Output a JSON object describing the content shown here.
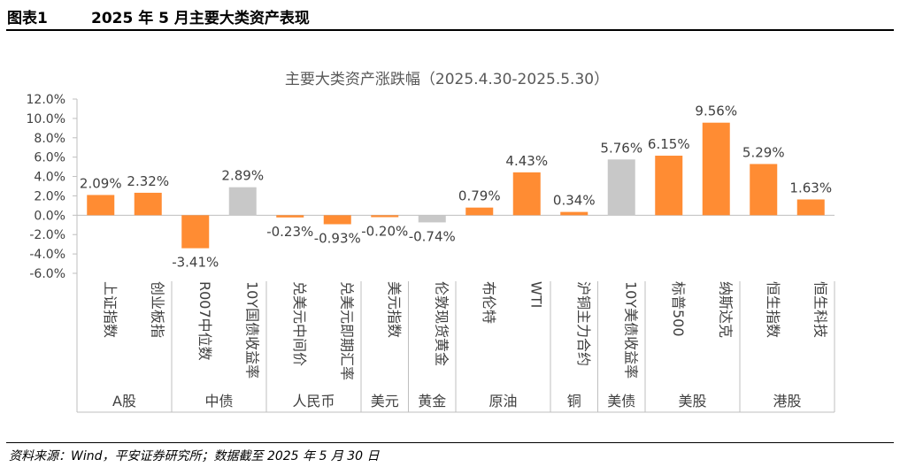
{
  "header": {
    "figure_label": "图表1",
    "figure_title": "2025 年 5 月主要大类资产表现"
  },
  "footer": {
    "source": "资料来源：Wind，平安证券研究所；数据截至 2025 年 5 月 30 日"
  },
  "chart_data": {
    "type": "bar",
    "title": "主要大类资产涨跌幅（2025.4.30-2025.5.30）",
    "ylim": [
      -6.0,
      12.0
    ],
    "y_ticks": [
      12.0,
      10.0,
      8.0,
      6.0,
      4.0,
      2.0,
      0.0,
      -2.0,
      -4.0,
      -6.0
    ],
    "y_tick_labels": [
      "12.0%",
      "10.0%",
      "8.0%",
      "6.0%",
      "4.0%",
      "2.0%",
      "0.0%",
      "-2.0%",
      "-4.0%",
      "-6.0%"
    ],
    "grid": false,
    "legend": "none",
    "colors": {
      "orange": "#FF8C33",
      "gray": "#C8C8C8"
    },
    "categories": [
      "上证指数",
      "创业板指",
      "R007中位数",
      "10Y国债收益率",
      "兑美元中间价",
      "兑美元即期汇率",
      "美元指数",
      "伦敦现货黄金",
      "布伦特",
      "WTI",
      "沪铜主力合约",
      "10Y美债收益率",
      "标普500",
      "纳斯达克",
      "恒生指数",
      "恒生科技"
    ],
    "values": [
      2.09,
      2.32,
      -3.41,
      2.89,
      -0.23,
      -0.93,
      -0.2,
      -0.74,
      0.79,
      4.43,
      0.34,
      5.76,
      6.15,
      9.56,
      5.29,
      1.63
    ],
    "value_labels": [
      "2.09%",
      "2.32%",
      "-3.41%",
      "2.89%",
      "-0.23%",
      "-0.93%",
      "-0.20%",
      "-0.74%",
      "0.79%",
      "4.43%",
      "0.34%",
      "5.76%",
      "6.15%",
      "9.56%",
      "5.29%",
      "1.63%"
    ],
    "bar_colors": [
      "orange",
      "orange",
      "orange",
      "gray",
      "orange",
      "orange",
      "orange",
      "gray",
      "orange",
      "orange",
      "orange",
      "gray",
      "orange",
      "orange",
      "orange",
      "orange"
    ],
    "groups": [
      {
        "name": "A股",
        "count": 2
      },
      {
        "name": "中债",
        "count": 2
      },
      {
        "name": "人民币",
        "count": 2
      },
      {
        "name": "美元",
        "count": 1
      },
      {
        "name": "黄金",
        "count": 1
      },
      {
        "name": "原油",
        "count": 2
      },
      {
        "name": "铜",
        "count": 1
      },
      {
        "name": "美债",
        "count": 1
      },
      {
        "name": "美股",
        "count": 2
      },
      {
        "name": "港股",
        "count": 2
      }
    ]
  }
}
